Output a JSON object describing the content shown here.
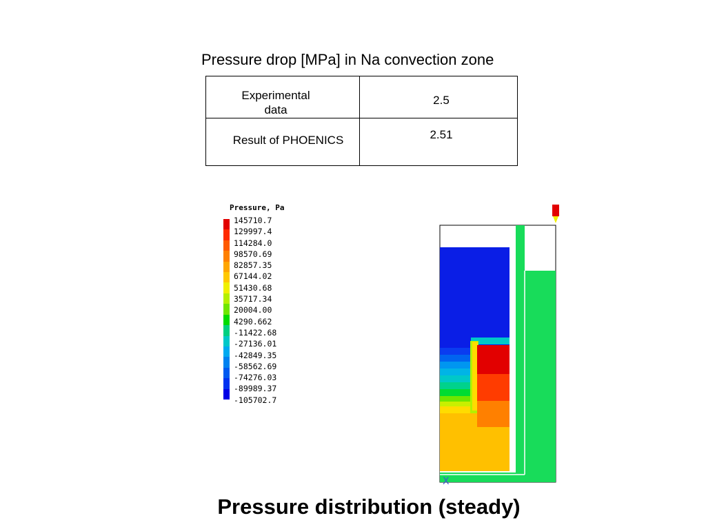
{
  "table": {
    "title": "Pressure drop [MPa] in Na convection zone",
    "rows": [
      {
        "label_line1": "Experimental",
        "label_line2": "data",
        "value": "2.5"
      },
      {
        "label": "Result of PHOENICS",
        "value": "2.51"
      }
    ]
  },
  "legend": {
    "title": "Pressure, Pa",
    "levels": [
      {
        "value": "145710.7",
        "color": "#e20000"
      },
      {
        "value": "129997.4",
        "color": "#ff2a00"
      },
      {
        "value": "114284.0",
        "color": "#ff5a00"
      },
      {
        "value": "98570.69",
        "color": "#ff8000"
      },
      {
        "value": "82857.35",
        "color": "#ffa500"
      },
      {
        "value": "67144.02",
        "color": "#ffc800"
      },
      {
        "value": "51430.68",
        "color": "#f0f000"
      },
      {
        "value": "35717.34",
        "color": "#b4f000"
      },
      {
        "value": "20004.00",
        "color": "#6ee600"
      },
      {
        "value": "4290.662",
        "color": "#00dc00"
      },
      {
        "value": "-11422.68",
        "color": "#00d080"
      },
      {
        "value": "-27136.01",
        "color": "#00c8c8"
      },
      {
        "value": "-42849.35",
        "color": "#00aaf0"
      },
      {
        "value": "-58562.69",
        "color": "#0082f0"
      },
      {
        "value": "-74276.03",
        "color": "#005af0"
      },
      {
        "value": "-89989.37",
        "color": "#0032f0"
      },
      {
        "value": "-105702.7",
        "color": "#0000e6"
      }
    ]
  },
  "plot": {
    "axis_label": "X"
  },
  "caption": "Pressure distribution (steady)"
}
